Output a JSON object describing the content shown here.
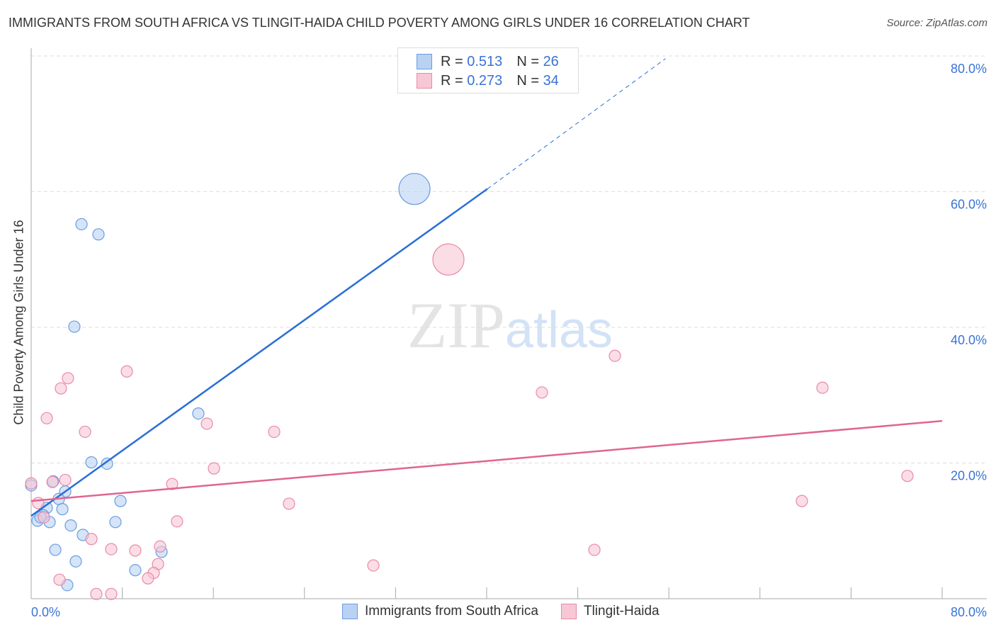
{
  "title": "IMMIGRANTS FROM SOUTH AFRICA VS TLINGIT-HAIDA CHILD POVERTY AMONG GIRLS UNDER 16 CORRELATION CHART",
  "source": "Source: ZipAtlas.com",
  "watermark": "ZIPatlas",
  "legend": {
    "r_label": "R =",
    "n_label": "N =",
    "s1_r": "0.513",
    "s1_n": "26",
    "s2_r": "0.273",
    "s2_n": "34"
  },
  "chart_data": {
    "type": "scatter",
    "title": "IMMIGRANTS FROM SOUTH AFRICA VS TLINGIT-HAIDA CHILD POVERTY AMONG GIRLS UNDER 16 CORRELATION CHART",
    "xlabel": "",
    "ylabel": "Child Poverty Among Girls Under 16",
    "xlim": [
      0,
      80
    ],
    "ylim": [
      0,
      80
    ],
    "x_tick_labels": [
      "0.0%",
      "80.0%"
    ],
    "y_tick_labels": [
      "20.0%",
      "40.0%",
      "60.0%",
      "80.0%"
    ],
    "y_ticks": [
      20,
      40,
      60,
      80
    ],
    "legend_position": "top-center",
    "series": [
      {
        "name": "Immigrants from South Africa",
        "color": "#6a9de0",
        "fill": "#b9d2f3",
        "line": "#2a6fd6",
        "r": 0.513,
        "n": 26,
        "trend": [
          [
            0,
            12.2
          ],
          [
            40.06,
            60.4
          ]
        ],
        "trend_dash_to": [
          55.7,
          79.6
        ],
        "points": [
          [
            33.66,
            60.4
          ],
          [
            4.42,
            55.2
          ],
          [
            5.91,
            53.7
          ],
          [
            3.79,
            40.1
          ],
          [
            14.68,
            27.3
          ],
          [
            5.29,
            20.1
          ],
          [
            6.66,
            19.9
          ],
          [
            0,
            16.7
          ],
          [
            1.93,
            17.3
          ],
          [
            2.99,
            15.8
          ],
          [
            2.43,
            14.7
          ],
          [
            7.84,
            14.4
          ],
          [
            1.37,
            13.4
          ],
          [
            2.74,
            13.2
          ],
          [
            1.06,
            12.3
          ],
          [
            0.56,
            11.5
          ],
          [
            1.62,
            11.3
          ],
          [
            3.48,
            10.8
          ],
          [
            7.4,
            11.3
          ],
          [
            4.54,
            9.4
          ],
          [
            2.12,
            7.2
          ],
          [
            3.92,
            5.5
          ],
          [
            9.14,
            4.2
          ],
          [
            11.45,
            6.9
          ],
          [
            3.17,
            2.0
          ],
          [
            0.81,
            12.0
          ]
        ],
        "big": [
          0
        ]
      },
      {
        "name": "Tlingit-Haida",
        "color": "#e88aa8",
        "fill": "#f8c7d6",
        "line": "#e06592",
        "r": 0.273,
        "n": 34,
        "trend": [
          [
            0,
            14.4
          ],
          [
            80,
            26.2
          ]
        ],
        "points": [
          [
            36.64,
            50.0
          ],
          [
            51.26,
            35.8
          ],
          [
            8.4,
            33.5
          ],
          [
            3.23,
            32.5
          ],
          [
            2.61,
            31.0
          ],
          [
            44.85,
            30.4
          ],
          [
            69.49,
            31.1
          ],
          [
            1.37,
            26.6
          ],
          [
            15.43,
            25.8
          ],
          [
            4.73,
            24.6
          ],
          [
            21.34,
            24.6
          ],
          [
            16.05,
            19.2
          ],
          [
            12.38,
            16.9
          ],
          [
            2.99,
            17.5
          ],
          [
            1.87,
            17.2
          ],
          [
            0,
            17.0
          ],
          [
            0.62,
            14.1
          ],
          [
            76.95,
            18.1
          ],
          [
            22.64,
            14.0
          ],
          [
            67.68,
            14.4
          ],
          [
            12.81,
            11.4
          ],
          [
            1.12,
            12.0
          ],
          [
            5.29,
            8.8
          ],
          [
            7.03,
            7.3
          ],
          [
            9.14,
            7.1
          ],
          [
            11.32,
            7.7
          ],
          [
            49.46,
            7.2
          ],
          [
            11.14,
            5.1
          ],
          [
            30.05,
            4.9
          ],
          [
            2.49,
            2.8
          ],
          [
            10.76,
            3.8
          ],
          [
            10.26,
            3.0
          ],
          [
            5.72,
            0.7
          ],
          [
            7.03,
            0.7
          ]
        ],
        "big": [
          0
        ]
      }
    ]
  }
}
